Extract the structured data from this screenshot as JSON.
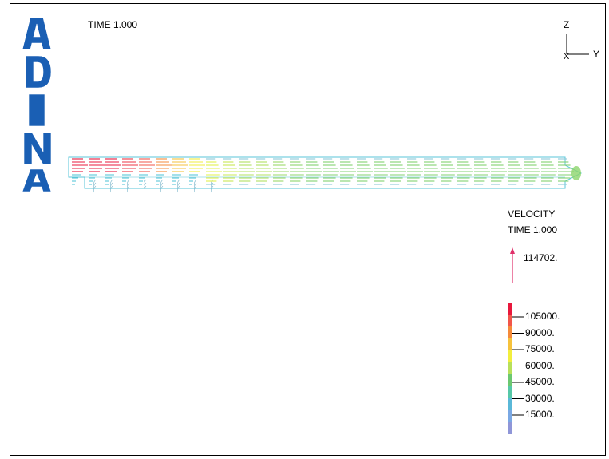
{
  "logo": {
    "text": "ADINA",
    "color": "#1a5fb4"
  },
  "time_label": "TIME 1.000",
  "axes": {
    "z": "Z",
    "y": "Y",
    "x": "X"
  },
  "velocity_panel": {
    "title": "VELOCITY",
    "time": "TIME 1.000",
    "reference_value": "114702.",
    "reference_arrow_color": "#e0306a"
  },
  "legend": {
    "labels": [
      "105000.",
      "90000.",
      "75000.",
      "60000.",
      "45000.",
      "30000.",
      "15000."
    ],
    "colors": [
      "#e8183c",
      "#f2564a",
      "#f58a3a",
      "#f6c23c",
      "#f2ee3e",
      "#b8e05a",
      "#6cc870",
      "#56c8a8",
      "#5ab8d8",
      "#7aa8e4",
      "#8f96d8"
    ]
  },
  "mesh_color": "#59c6d8"
}
